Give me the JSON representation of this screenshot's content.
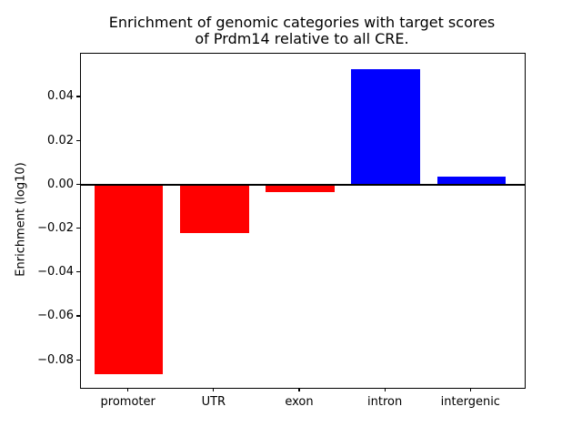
{
  "chart_data": {
    "type": "bar",
    "title": "Enrichment of genomic categories with target scores\nof Prdm14 relative to all CRE.",
    "title_lines": [
      "Enrichment of genomic categories with target scores",
      "of Prdm14 relative to all CRE."
    ],
    "ylabel": "Enrichment (log10)",
    "xlabel": "",
    "categories": [
      "promoter",
      "UTR",
      "exon",
      "intron",
      "intergenic"
    ],
    "values": [
      -0.086,
      -0.022,
      -0.003,
      0.053,
      0.004
    ],
    "bar_colors": [
      "#ff0000",
      "#ff0000",
      "#ff0000",
      "#0000ff",
      "#0000ff"
    ],
    "negative_color": "#ff0000",
    "positive_color": "#0000ff",
    "yticks": [
      0.04,
      0.02,
      0.0,
      -0.02,
      -0.04,
      -0.06,
      -0.08
    ],
    "ytick_labels": [
      "0.04",
      "0.02",
      "0.00",
      "−0.02",
      "−0.04",
      "−0.06",
      "−0.08"
    ],
    "ylim": [
      -0.0924,
      0.0601
    ],
    "baseline": 0,
    "grid": false,
    "legend": null,
    "bar_width_fraction": 0.8,
    "axis_color": "#000000",
    "background_color": "#ffffff"
  }
}
